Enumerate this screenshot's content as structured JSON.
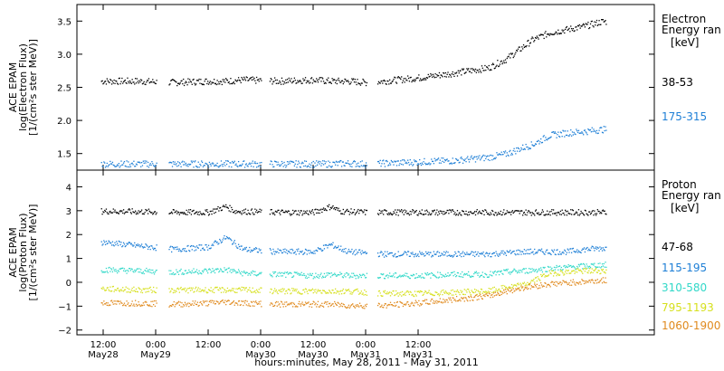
{
  "chart_data": [
    {
      "type": "scatter",
      "ylabel_lines": [
        "ACE EPAM",
        "log(Electron Flux)",
        "[1/(cm²s ster MeV)]"
      ],
      "ylim": [
        1.25,
        3.75
      ],
      "yticks": [
        1.5,
        2.0,
        2.5,
        3.0,
        3.5
      ],
      "ytick_labels": [
        "1.5",
        "2.0",
        "2.5",
        "3.0",
        "3.5"
      ],
      "legend_title_lines": [
        "Electron",
        "Energy ran"
      ],
      "legend_unit": "[keV]",
      "series": [
        {
          "name": "38-53",
          "color": "#000000",
          "points": [
            [
              0,
              2.6
            ],
            [
              8,
              2.6
            ],
            [
              16,
              2.58
            ],
            [
              24,
              2.6
            ],
            [
              28,
              2.6
            ],
            [
              32,
              2.62
            ],
            [
              40,
              2.6
            ],
            [
              48,
              2.62
            ],
            [
              52,
              2.6
            ],
            [
              56,
              2.6
            ],
            [
              60,
              2.58
            ],
            [
              64,
              2.6
            ],
            [
              72,
              2.65
            ],
            [
              80,
              2.72
            ],
            [
              88,
              2.8
            ],
            [
              92,
              2.93
            ],
            [
              96,
              3.12
            ],
            [
              98,
              3.22
            ],
            [
              102,
              3.33
            ],
            [
              106,
              3.38
            ],
            [
              110,
              3.43
            ],
            [
              114,
              3.5
            ]
          ]
        },
        {
          "name": "175-315",
          "color": "#1e7fd6",
          "points": [
            [
              0,
              1.35
            ],
            [
              8,
              1.35
            ],
            [
              16,
              1.35
            ],
            [
              24,
              1.35
            ],
            [
              28,
              1.35
            ],
            [
              32,
              1.35
            ],
            [
              40,
              1.35
            ],
            [
              48,
              1.35
            ],
            [
              52,
              1.35
            ],
            [
              56,
              1.36
            ],
            [
              60,
              1.35
            ],
            [
              64,
              1.36
            ],
            [
              72,
              1.38
            ],
            [
              80,
              1.4
            ],
            [
              88,
              1.45
            ],
            [
              92,
              1.5
            ],
            [
              96,
              1.6
            ],
            [
              98,
              1.64
            ],
            [
              102,
              1.78
            ],
            [
              106,
              1.82
            ],
            [
              110,
              1.84
            ],
            [
              114,
              1.87
            ]
          ]
        }
      ]
    },
    {
      "type": "scatter",
      "ylabel_lines": [
        "ACE EPAM",
        "log(Proton Flux)",
        "[1/(cm²s ster MeV)]"
      ],
      "ylim": [
        -2.2,
        4.7
      ],
      "yticks": [
        -2,
        -1,
        0,
        1,
        2,
        3,
        4
      ],
      "ytick_labels": [
        "−2",
        "−1",
        "0",
        "1",
        "2",
        "3",
        "4"
      ],
      "legend_title_lines": [
        "Proton",
        "Energy ran"
      ],
      "legend_unit": "[keV]",
      "series": [
        {
          "name": "47-68",
          "color": "#000000",
          "points": [
            [
              0,
              3.0
            ],
            [
              8,
              2.98
            ],
            [
              16,
              2.95
            ],
            [
              24,
              2.95
            ],
            [
              28,
              3.2
            ],
            [
              30,
              3.0
            ],
            [
              40,
              2.95
            ],
            [
              48,
              2.95
            ],
            [
              52,
              3.2
            ],
            [
              54,
              3.0
            ],
            [
              60,
              2.95
            ],
            [
              64,
              2.95
            ],
            [
              72,
              2.95
            ],
            [
              80,
              2.95
            ],
            [
              88,
              2.95
            ],
            [
              92,
              2.95
            ],
            [
              96,
              2.95
            ],
            [
              102,
              2.95
            ],
            [
              110,
              2.95
            ],
            [
              114,
              2.95
            ]
          ]
        },
        {
          "name": "115-195",
          "color": "#1e7fd6",
          "points": [
            [
              0,
              1.7
            ],
            [
              8,
              1.55
            ],
            [
              16,
              1.4
            ],
            [
              24,
              1.5
            ],
            [
              28,
              1.9
            ],
            [
              32,
              1.4
            ],
            [
              40,
              1.3
            ],
            [
              48,
              1.3
            ],
            [
              52,
              1.6
            ],
            [
              56,
              1.3
            ],
            [
              64,
              1.2
            ],
            [
              72,
              1.2
            ],
            [
              80,
              1.2
            ],
            [
              88,
              1.2
            ],
            [
              92,
              1.25
            ],
            [
              96,
              1.3
            ],
            [
              102,
              1.3
            ],
            [
              106,
              1.3
            ],
            [
              110,
              1.4
            ],
            [
              114,
              1.45
            ]
          ]
        },
        {
          "name": "310-580",
          "color": "#31d8c8",
          "points": [
            [
              0,
              0.55
            ],
            [
              8,
              0.5
            ],
            [
              16,
              0.45
            ],
            [
              24,
              0.5
            ],
            [
              28,
              0.55
            ],
            [
              32,
              0.4
            ],
            [
              40,
              0.35
            ],
            [
              48,
              0.3
            ],
            [
              52,
              0.35
            ],
            [
              56,
              0.3
            ],
            [
              64,
              0.3
            ],
            [
              72,
              0.3
            ],
            [
              80,
              0.35
            ],
            [
              88,
              0.35
            ],
            [
              92,
              0.45
            ],
            [
              96,
              0.5
            ],
            [
              102,
              0.6
            ],
            [
              106,
              0.65
            ],
            [
              110,
              0.7
            ],
            [
              114,
              0.75
            ]
          ]
        },
        {
          "name": "795-1193",
          "color": "#d6e01e",
          "points": [
            [
              0,
              -0.25
            ],
            [
              8,
              -0.3
            ],
            [
              16,
              -0.3
            ],
            [
              24,
              -0.3
            ],
            [
              28,
              -0.3
            ],
            [
              32,
              -0.3
            ],
            [
              40,
              -0.35
            ],
            [
              48,
              -0.35
            ],
            [
              52,
              -0.35
            ],
            [
              56,
              -0.35
            ],
            [
              64,
              -0.45
            ],
            [
              72,
              -0.45
            ],
            [
              80,
              -0.4
            ],
            [
              88,
              -0.35
            ],
            [
              92,
              -0.2
            ],
            [
              96,
              -0.1
            ],
            [
              102,
              0.4
            ],
            [
              106,
              0.45
            ],
            [
              110,
              0.5
            ],
            [
              114,
              0.5
            ]
          ]
        },
        {
          "name": "1060-1900",
          "color": "#e08a1e",
          "points": [
            [
              0,
              -0.85
            ],
            [
              8,
              -0.85
            ],
            [
              16,
              -0.9
            ],
            [
              24,
              -0.85
            ],
            [
              28,
              -0.8
            ],
            [
              32,
              -0.85
            ],
            [
              40,
              -0.9
            ],
            [
              48,
              -0.9
            ],
            [
              52,
              -0.9
            ],
            [
              56,
              -0.95
            ],
            [
              64,
              -0.95
            ],
            [
              72,
              -0.85
            ],
            [
              80,
              -0.7
            ],
            [
              88,
              -0.55
            ],
            [
              92,
              -0.35
            ],
            [
              96,
              -0.2
            ],
            [
              102,
              -0.05
            ],
            [
              106,
              0.0
            ],
            [
              110,
              0.05
            ],
            [
              114,
              0.1
            ]
          ]
        }
      ]
    }
  ],
  "x_axis": {
    "range_hours": [
      -6,
      126
    ],
    "ticks": [
      {
        "hour": 0,
        "line1": "12:00",
        "line2": "May28"
      },
      {
        "hour": 12,
        "line1": "0:00",
        "line2": "May29"
      },
      {
        "hour": 24,
        "line1": "12:00",
        "line2": ""
      },
      {
        "hour": 36,
        "line1": "0:00",
        "line2": "May30"
      },
      {
        "hour": 48,
        "line1": "12:00",
        "line2": "May30"
      },
      {
        "hour": 60,
        "line1": "0:00",
        "line2": "May31"
      },
      {
        "hour": 72,
        "line1": "12:00",
        "line2": "May31"
      }
    ],
    "label": "hours:minutes, May 28, 2011 - May 31, 2011"
  }
}
